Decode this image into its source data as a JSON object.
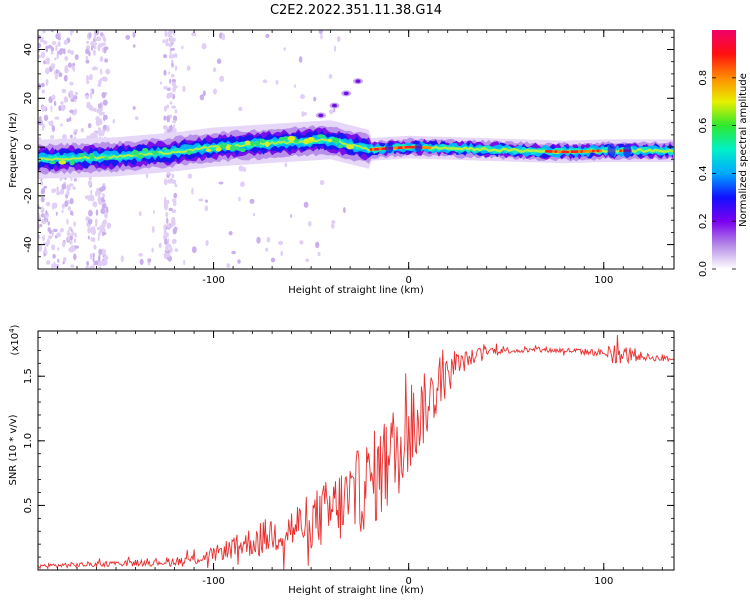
{
  "title": "C2E2.2022.351.11.38.G14",
  "chart_data": [
    {
      "type": "heatmap",
      "xlabel": "Height of straight line (km)",
      "ylabel": "Frequency (Hz)",
      "xlim": [
        -190,
        136
      ],
      "ylim": [
        -50,
        48
      ],
      "xticks": [
        "-100",
        "0",
        "100"
      ],
      "yticks": [
        "-40",
        "-20",
        "0",
        "20",
        "40"
      ],
      "colorbar": {
        "label": "Normalized spectral amplitude",
        "range": [
          0,
          1
        ],
        "ticks": [
          "0.0",
          "0.2",
          "0.4",
          "0.6",
          "0.8"
        ],
        "colors": [
          "#ffffff",
          "#b58ae6",
          "#7a00f0",
          "#1010ff",
          "#00a8ff",
          "#00f0c8",
          "#2ee82e",
          "#e8f000",
          "#ff8c00",
          "#ff1010",
          "#f0006a"
        ]
      },
      "ridge": {
        "points": [
          [
            -190,
            -5
          ],
          [
            -150,
            -4
          ],
          [
            -120,
            -2
          ],
          [
            -100,
            0
          ],
          [
            -80,
            1
          ],
          [
            -60,
            2
          ],
          [
            -40,
            3
          ],
          [
            -30,
            1
          ],
          [
            -20,
            -1
          ],
          [
            0,
            0
          ],
          [
            40,
            -1
          ],
          [
            80,
            -2
          ],
          [
            100,
            -1.5
          ],
          [
            136,
            -1.5
          ]
        ]
      },
      "branch": {
        "points": [
          [
            -45,
            13
          ],
          [
            -38,
            17
          ],
          [
            -32,
            22
          ],
          [
            -26,
            27
          ]
        ]
      }
    },
    {
      "type": "line",
      "xlabel": "Height of straight line (km)",
      "ylabel": "SNR (10 * v/v)",
      "scale_label": "(x10",
      "scale_exp": "4",
      "scale_close": ")",
      "xlim": [
        -190,
        136
      ],
      "ylim": [
        0,
        1.85
      ],
      "xticks": [
        "-100",
        "0",
        "100"
      ],
      "yticks": [
        "0.5",
        "1.0",
        "1.5"
      ],
      "series": [
        {
          "color": "#e83030",
          "x": [
            -190,
            -170,
            -150,
            -130,
            -110,
            -100,
            -90,
            -80,
            -70,
            -60,
            -50,
            -40,
            -30,
            -20,
            -15,
            -10,
            -5,
            0,
            5,
            10,
            15,
            20,
            25,
            30,
            35,
            40,
            60,
            80,
            100,
            105,
            110,
            115,
            120,
            136
          ],
          "y": [
            0.03,
            0.04,
            0.05,
            0.06,
            0.08,
            0.12,
            0.18,
            0.22,
            0.28,
            0.32,
            0.38,
            0.45,
            0.55,
            0.68,
            0.76,
            0.85,
            0.95,
            1.05,
            1.18,
            1.3,
            1.4,
            1.5,
            1.58,
            1.63,
            1.67,
            1.7,
            1.7,
            1.7,
            1.68,
            1.69,
            1.66,
            1.67,
            1.65,
            1.63
          ],
          "noise": [
            0.02,
            0.02,
            0.02,
            0.03,
            0.04,
            0.06,
            0.08,
            0.12,
            0.15,
            0.18,
            0.22,
            0.28,
            0.32,
            0.36,
            0.38,
            0.4,
            0.38,
            0.34,
            0.3,
            0.26,
            0.2,
            0.14,
            0.1,
            0.07,
            0.05,
            0.03,
            0.02,
            0.02,
            0.03,
            0.06,
            0.08,
            0.06,
            0.03,
            0.02
          ]
        }
      ]
    }
  ]
}
